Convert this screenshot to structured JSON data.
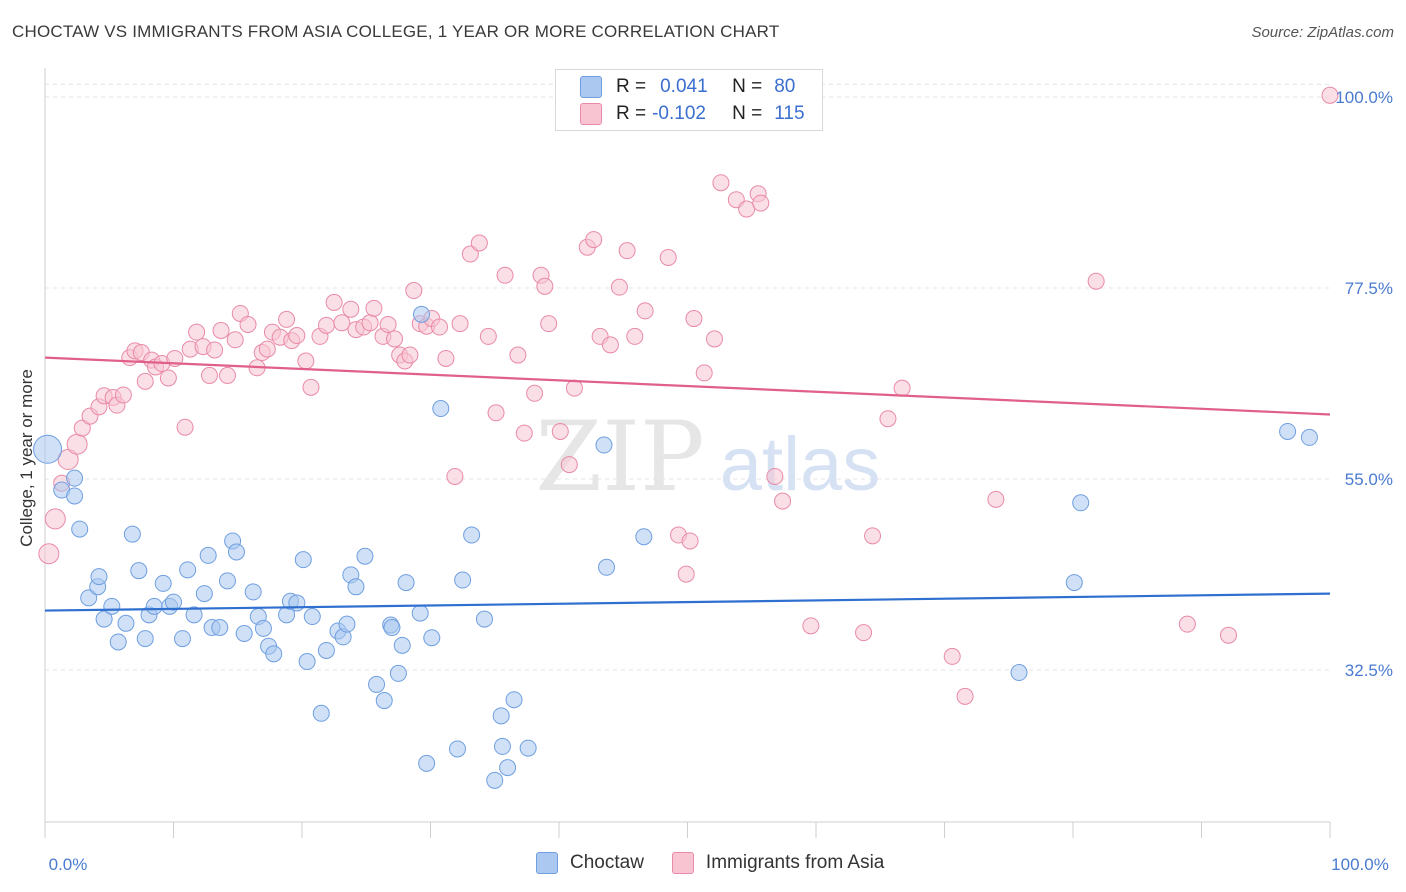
{
  "title": "CHOCTAW VS IMMIGRANTS FROM ASIA COLLEGE, 1 YEAR OR MORE CORRELATION CHART",
  "source": "Source: ZipAtlas.com",
  "watermark": {
    "zip": "ZIP",
    "atlas": "atlas"
  },
  "legend": {
    "r_label": "R =",
    "n_label": "N =",
    "rows": [
      {
        "r": "0.041",
        "n": "80",
        "color": "#aac8f0",
        "border": "#6f9fe0"
      },
      {
        "r": "-0.102",
        "n": "115",
        "color": "#f8c4d2",
        "border": "#e98aa8"
      }
    ]
  },
  "chart_data": {
    "type": "scatter",
    "title": "CHOCTAW VS IMMIGRANTS FROM ASIA COLLEGE, 1 YEAR OR MORE CORRELATION CHART",
    "xlabel": "",
    "ylabel": "College, 1 year or more",
    "xlim": [
      0,
      100
    ],
    "ylim": [
      10,
      102
    ],
    "x_tick_labels": [
      "0.0%",
      "100.0%"
    ],
    "y_ticks": [
      32.5,
      55.0,
      77.5,
      100.0
    ],
    "y_tick_labels": [
      "32.5%",
      "55.0%",
      "77.5%",
      "100.0%"
    ],
    "grid": true,
    "legend_position": "top-center",
    "series": [
      {
        "name": "Choctaw",
        "color": "#aac8f0",
        "stroke": "#6f9fe0",
        "line_color": "#2f6fcf",
        "trend": [
          [
            0,
            39.5
          ],
          [
            100,
            41.5
          ]
        ],
        "points": [
          [
            0.2,
            58.5,
            14
          ],
          [
            1.3,
            53.7,
            8
          ],
          [
            2.3,
            55.1,
            8
          ],
          [
            2.3,
            53,
            8
          ],
          [
            2.7,
            49.1,
            8
          ],
          [
            3.4,
            41,
            8
          ],
          [
            4.1,
            42.3,
            8
          ],
          [
            4.2,
            43.5,
            8
          ],
          [
            4.6,
            38.5,
            8
          ],
          [
            5.2,
            40,
            8
          ],
          [
            5.7,
            35.8,
            8
          ],
          [
            6.3,
            38,
            8
          ],
          [
            6.8,
            48.5,
            8
          ],
          [
            7.3,
            44.2,
            8
          ],
          [
            7.8,
            36.2,
            8
          ],
          [
            8.1,
            39,
            8
          ],
          [
            8.5,
            40,
            8
          ],
          [
            9.2,
            42.7,
            8
          ],
          [
            9.7,
            40,
            8
          ],
          [
            10,
            40.5,
            8
          ],
          [
            10.7,
            36.2,
            8
          ],
          [
            11.1,
            44.3,
            8
          ],
          [
            11.6,
            39,
            8
          ],
          [
            12.4,
            41.5,
            8
          ],
          [
            12.7,
            46,
            8
          ],
          [
            13,
            37.5,
            8
          ],
          [
            13.6,
            37.5,
            8
          ],
          [
            14.2,
            43,
            8
          ],
          [
            14.6,
            47.7,
            8
          ],
          [
            14.9,
            46.4,
            8
          ],
          [
            15.5,
            36.8,
            8
          ],
          [
            16.2,
            41.7,
            8
          ],
          [
            16.6,
            38.8,
            8
          ],
          [
            17,
            37.4,
            8
          ],
          [
            17.4,
            35.3,
            8
          ],
          [
            17.8,
            34.4,
            8
          ],
          [
            18.8,
            39,
            8
          ],
          [
            19.1,
            40.6,
            8
          ],
          [
            19.6,
            40.4,
            8
          ],
          [
            20.1,
            45.5,
            8
          ],
          [
            20.4,
            33.5,
            8
          ],
          [
            20.8,
            38.8,
            8
          ],
          [
            21.5,
            27.4,
            8
          ],
          [
            21.9,
            34.8,
            8
          ],
          [
            22.8,
            37.1,
            8
          ],
          [
            23.2,
            36.4,
            8
          ],
          [
            23.5,
            37.9,
            8
          ],
          [
            23.8,
            43.7,
            8
          ],
          [
            24.2,
            42.3,
            8
          ],
          [
            24.9,
            45.9,
            8
          ],
          [
            25.8,
            30.8,
            8
          ],
          [
            26.4,
            28.9,
            8
          ],
          [
            26.9,
            37.8,
            8
          ],
          [
            27,
            37.5,
            8
          ],
          [
            27.5,
            32.1,
            8
          ],
          [
            27.8,
            35.4,
            8
          ],
          [
            28.1,
            42.8,
            8
          ],
          [
            29.2,
            39.2,
            8
          ],
          [
            29.3,
            74.4,
            8
          ],
          [
            29.7,
            21.5,
            8
          ],
          [
            30.1,
            36.3,
            8
          ],
          [
            30.8,
            63.3,
            8
          ],
          [
            32.1,
            23.2,
            8
          ],
          [
            32.5,
            43.1,
            8
          ],
          [
            33.2,
            48.4,
            8
          ],
          [
            34.2,
            38.5,
            8
          ],
          [
            35,
            19.5,
            8
          ],
          [
            35.5,
            27.1,
            8
          ],
          [
            35.6,
            23.5,
            8
          ],
          [
            36,
            21,
            8
          ],
          [
            36.5,
            29,
            8
          ],
          [
            37.6,
            23.3,
            8
          ],
          [
            43.5,
            59,
            8
          ],
          [
            43.7,
            44.6,
            8
          ],
          [
            46.6,
            48.2,
            8
          ],
          [
            75.8,
            32.2,
            8
          ],
          [
            80.1,
            42.8,
            8
          ],
          [
            80.6,
            52.2,
            8
          ],
          [
            96.7,
            60.6,
            8
          ],
          [
            98.4,
            59.9,
            8
          ]
        ]
      },
      {
        "name": "Immigrants from Asia",
        "color": "#f8c4d2",
        "stroke": "#e98aa8",
        "line_color": "#e0608a",
        "trend": [
          [
            0,
            69.3
          ],
          [
            100,
            62.6
          ]
        ],
        "points": [
          [
            0.3,
            46.2,
            10
          ],
          [
            0.8,
            50.3,
            10
          ],
          [
            1.3,
            54.5,
            8
          ],
          [
            1.8,
            57.3,
            10
          ],
          [
            2.5,
            59.1,
            10
          ],
          [
            2.9,
            61,
            8
          ],
          [
            3.5,
            62.4,
            8
          ],
          [
            4.2,
            63.5,
            8
          ],
          [
            4.6,
            64.8,
            8
          ],
          [
            5.3,
            64.6,
            8
          ],
          [
            5.6,
            63.7,
            8
          ],
          [
            6.1,
            64.9,
            8
          ],
          [
            6.6,
            69.3,
            8
          ],
          [
            7,
            70.1,
            8
          ],
          [
            7.5,
            69.9,
            8
          ],
          [
            7.8,
            66.5,
            8
          ],
          [
            8.3,
            69,
            8
          ],
          [
            8.6,
            68.2,
            8
          ],
          [
            9.1,
            68.6,
            8
          ],
          [
            9.6,
            66.9,
            8
          ],
          [
            10.1,
            69.2,
            8
          ],
          [
            10.9,
            61.1,
            8
          ],
          [
            11.3,
            70.3,
            8
          ],
          [
            11.8,
            72.3,
            8
          ],
          [
            12.3,
            70.6,
            8
          ],
          [
            12.8,
            67.2,
            8
          ],
          [
            13.2,
            70.2,
            8
          ],
          [
            13.7,
            72.5,
            8
          ],
          [
            14.2,
            67.2,
            8
          ],
          [
            14.8,
            71.4,
            8
          ],
          [
            15.2,
            74.5,
            8
          ],
          [
            15.8,
            73.2,
            8
          ],
          [
            16.5,
            68.1,
            8
          ],
          [
            16.9,
            69.9,
            8
          ],
          [
            17.3,
            70.3,
            8
          ],
          [
            17.7,
            72.3,
            8
          ],
          [
            18.3,
            71.7,
            8
          ],
          [
            18.8,
            73.8,
            8
          ],
          [
            19.2,
            71.3,
            8
          ],
          [
            19.6,
            71.9,
            8
          ],
          [
            20.3,
            68.9,
            8
          ],
          [
            20.7,
            65.8,
            8
          ],
          [
            21.4,
            71.8,
            8
          ],
          [
            21.9,
            73.1,
            8
          ],
          [
            22.5,
            75.8,
            8
          ],
          [
            23.1,
            73.4,
            8
          ],
          [
            23.8,
            75,
            8
          ],
          [
            24.2,
            72.6,
            8
          ],
          [
            24.8,
            72.9,
            8
          ],
          [
            25.3,
            73.4,
            8
          ],
          [
            25.6,
            75.1,
            8
          ],
          [
            26.3,
            71.8,
            8
          ],
          [
            26.7,
            73.2,
            8
          ],
          [
            27.2,
            71.5,
            8
          ],
          [
            27.6,
            69.6,
            8
          ],
          [
            28,
            68.9,
            8
          ],
          [
            28.4,
            69.6,
            8
          ],
          [
            28.7,
            77.2,
            8
          ],
          [
            29.2,
            73.3,
            8
          ],
          [
            29.7,
            73,
            8
          ],
          [
            30.1,
            73.9,
            8
          ],
          [
            30.7,
            72.9,
            8
          ],
          [
            31.2,
            69.2,
            8
          ],
          [
            31.9,
            55.3,
            8
          ],
          [
            32.3,
            73.3,
            8
          ],
          [
            33.1,
            81.5,
            8
          ],
          [
            33.8,
            82.8,
            8
          ],
          [
            34.5,
            71.8,
            8
          ],
          [
            35.1,
            62.8,
            8
          ],
          [
            35.8,
            79,
            8
          ],
          [
            36.8,
            69.6,
            8
          ],
          [
            37.3,
            60.4,
            8
          ],
          [
            38.1,
            65.1,
            8
          ],
          [
            38.6,
            79,
            8
          ],
          [
            38.9,
            77.7,
            8
          ],
          [
            39.2,
            73.3,
            8
          ],
          [
            40.1,
            60.6,
            8
          ],
          [
            40.8,
            56.7,
            8
          ],
          [
            41.2,
            65.7,
            8
          ],
          [
            42.2,
            82.3,
            8
          ],
          [
            42.7,
            83.2,
            8
          ],
          [
            43.2,
            71.8,
            8
          ],
          [
            44,
            70.8,
            8
          ],
          [
            44.7,
            77.6,
            8
          ],
          [
            45.3,
            81.9,
            8
          ],
          [
            45.9,
            71.8,
            8
          ],
          [
            46.7,
            74.8,
            8
          ],
          [
            48.5,
            81.1,
            8
          ],
          [
            49.3,
            48.4,
            8
          ],
          [
            49.9,
            43.8,
            8
          ],
          [
            50.2,
            47.7,
            8
          ],
          [
            50.5,
            73.9,
            8
          ],
          [
            51.3,
            67.5,
            8
          ],
          [
            52.1,
            71.5,
            8
          ],
          [
            52.6,
            89.9,
            8
          ],
          [
            53.8,
            87.9,
            8
          ],
          [
            54.6,
            86.8,
            8
          ],
          [
            55.5,
            88.6,
            8
          ],
          [
            55.7,
            87.5,
            8
          ],
          [
            56.8,
            55.3,
            8
          ],
          [
            57.4,
            52.4,
            8
          ],
          [
            59.6,
            37.7,
            8
          ],
          [
            63.7,
            36.9,
            8
          ],
          [
            64.4,
            48.3,
            8
          ],
          [
            65.6,
            62.1,
            8
          ],
          [
            66.7,
            65.7,
            8
          ],
          [
            70.6,
            34.1,
            8
          ],
          [
            71.6,
            29.4,
            8
          ],
          [
            74,
            52.6,
            8
          ],
          [
            81.8,
            78.3,
            8
          ],
          [
            88.9,
            37.9,
            8
          ],
          [
            92.1,
            36.6,
            8
          ],
          [
            100,
            100.2,
            8
          ]
        ]
      }
    ]
  },
  "bottom_legend": [
    {
      "label": "Choctaw",
      "color": "#aac8f0",
      "border": "#6f9fe0"
    },
    {
      "label": "Immigrants from Asia",
      "color": "#f8c4d2",
      "border": "#e98aa8"
    }
  ]
}
